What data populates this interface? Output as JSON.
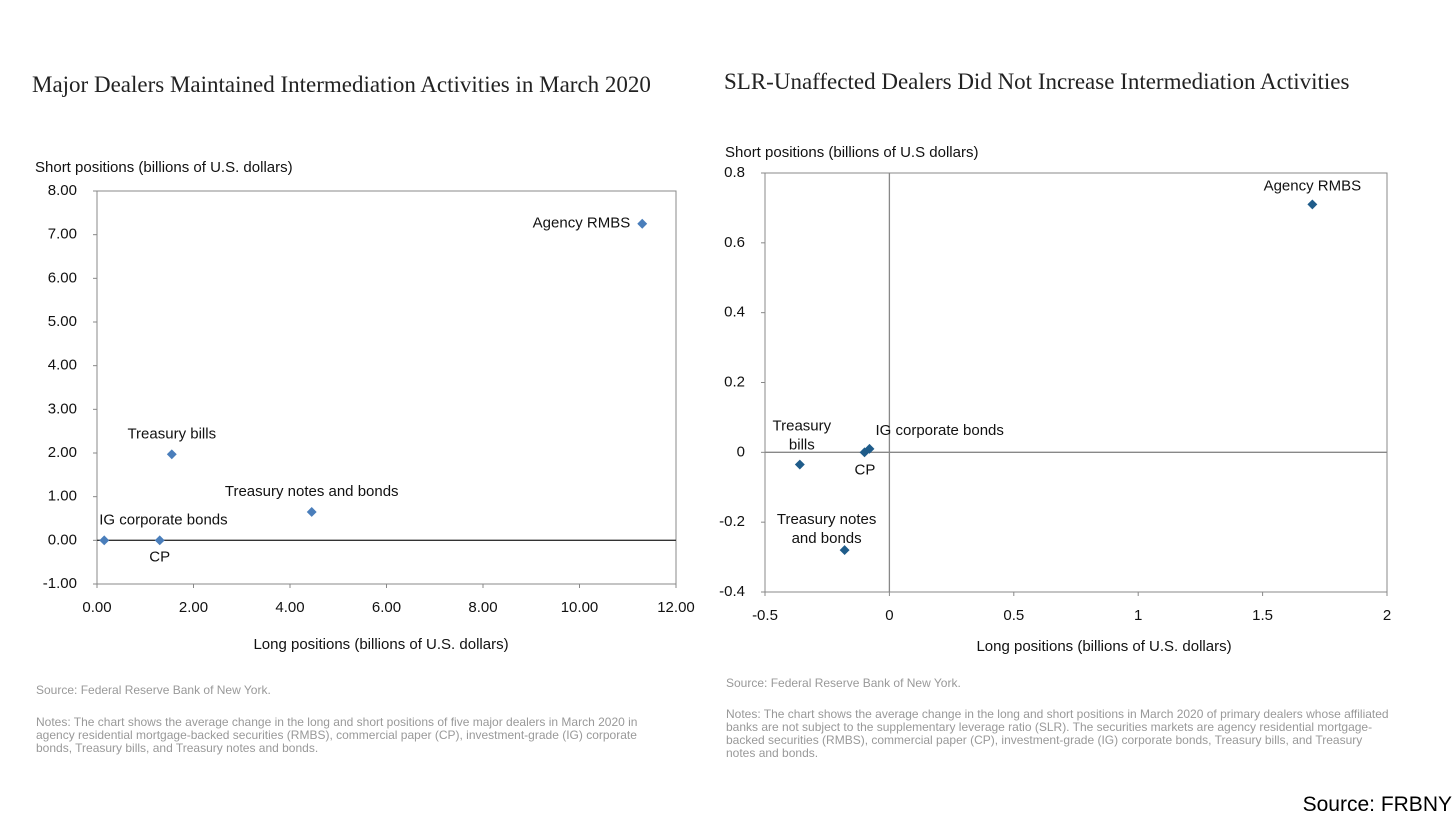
{
  "chart_data": [
    {
      "type": "scatter",
      "title": "Major Dealers Maintained Intermediation Activities in March 2020",
      "x_label": "Long positions (billions of U.S. dollars)",
      "y_label": "Short positions (billions of U.S. dollars)",
      "labels": [
        "Agency RMBS",
        "Treasury bills",
        "Treasury notes and bonds",
        "IG corporate bonds",
        "CP"
      ],
      "x": [
        11.3,
        1.55,
        4.45,
        0.15,
        1.3
      ],
      "values": [
        7.25,
        1.97,
        0.65,
        0.0,
        0.0
      ],
      "color": "#4a7ebb",
      "xlim": [
        0,
        12
      ],
      "ylim": [
        -1,
        8
      ],
      "xticks": [
        {
          "value": 0,
          "label": "0.00"
        },
        {
          "value": 2,
          "label": "2.00"
        },
        {
          "value": 4,
          "label": "4.00"
        },
        {
          "value": 6,
          "label": "6.00"
        },
        {
          "value": 8,
          "label": "8.00"
        },
        {
          "value": 10,
          "label": "10.00"
        },
        {
          "value": 12,
          "label": "12.00"
        }
      ],
      "yticks": [
        {
          "value": -1,
          "label": "-1.00"
        },
        {
          "value": 0,
          "label": "0.00"
        },
        {
          "value": 1,
          "label": "1.00"
        },
        {
          "value": 2,
          "label": "2.00"
        },
        {
          "value": 3,
          "label": "3.00"
        },
        {
          "value": 4,
          "label": "4.00"
        },
        {
          "value": 5,
          "label": "5.00"
        },
        {
          "value": 6,
          "label": "6.00"
        },
        {
          "value": 7,
          "label": "7.00"
        },
        {
          "value": 8,
          "label": "8.00"
        }
      ],
      "source": "Source: Federal Reserve Bank of New York.",
      "notes": "Notes: The chart shows the average change in the long and short positions of five major dealers in March 2020 in agency residential mortgage-backed securities (RMBS), commercial paper (CP), investment-grade (IG) corporate bonds, Treasury bills, and Treasury notes and bonds."
    },
    {
      "type": "scatter",
      "title": "SLR-Unaffected Dealers Did Not Increase Intermediation Activities",
      "x_label": "Long positions (billions of U.S. dollars)",
      "y_label": "Short positions (billions of U.S dollars)",
      "labels": [
        "Agency RMBS",
        "Treasury bills",
        "Treasury notes and bonds",
        "IG corporate bonds",
        "CP"
      ],
      "x": [
        1.7,
        -0.36,
        -0.18,
        -0.08,
        -0.1
      ],
      "values": [
        0.71,
        -0.035,
        -0.28,
        0.01,
        0.0
      ],
      "color": "#1f5c8a",
      "xlim": [
        -0.5,
        2
      ],
      "ylim": [
        -0.4,
        0.8
      ],
      "xticks": [
        -0.5,
        0,
        0.5,
        1,
        1.5,
        2
      ],
      "yticks": [
        -0.4,
        -0.2,
        0,
        0.2,
        0.4,
        0.6,
        0.8
      ],
      "source": "Source: Federal Reserve Bank of New York.",
      "notes": "Notes: The chart shows the average change in the long and short positions in March 2020 of primary dealers whose affiliated banks are not subject to the supplementary leverage ratio (SLR). The securities markets are agency residential mortgage-backed securities (RMBS), commercial paper (CP), investment-grade (IG) corporate bonds, Treasury bills, and Treasury notes and bonds."
    }
  ],
  "footer": "Source: FRBNY"
}
